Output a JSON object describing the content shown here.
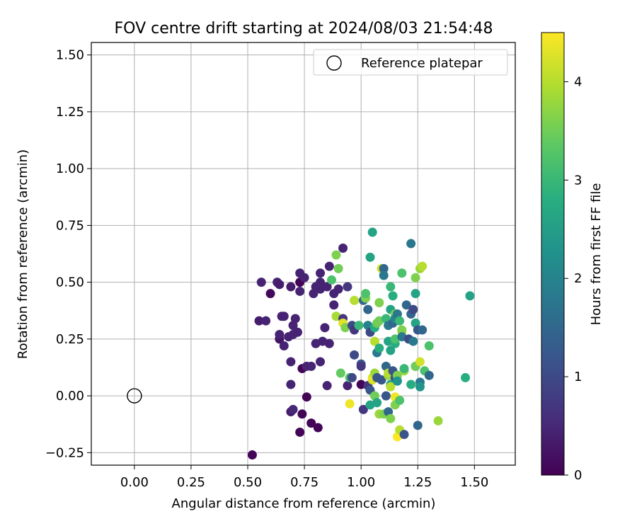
{
  "chart_data": {
    "type": "scatter",
    "title": "FOV centre drift starting at 2024/08/03 21:54:48",
    "xlabel": "Angular distance from reference (arcmin)",
    "ylabel": "Rotation from reference (arcmin)",
    "xlim": [
      -0.19,
      1.68
    ],
    "ylim": [
      -0.305,
      1.555
    ],
    "xticks": [
      0.0,
      0.25,
      0.5,
      0.75,
      1.0,
      1.25,
      1.5
    ],
    "xtick_labels": [
      "0.00",
      "0.25",
      "0.50",
      "0.75",
      "1.00",
      "1.25",
      "1.50"
    ],
    "yticks": [
      -0.25,
      0.0,
      0.25,
      0.5,
      0.75,
      1.0,
      1.25,
      1.5
    ],
    "ytick_labels": [
      "−0.25",
      "0.00",
      "0.25",
      "0.50",
      "0.75",
      "1.00",
      "1.25",
      "1.50"
    ],
    "grid": true,
    "legend": {
      "placement": "top-right",
      "entries": [
        "Reference platepar"
      ]
    },
    "reference_point": {
      "x": 0.0,
      "y": 0.0,
      "label": "Reference platepar"
    },
    "colorbar": {
      "label": "Hours from first FF file",
      "colormap": "viridis",
      "range": [
        0,
        4.5
      ],
      "ticks": [
        0,
        1,
        2,
        3,
        4
      ],
      "tick_labels": [
        "0",
        "1",
        "2",
        "3",
        "4"
      ]
    },
    "points": [
      {
        "x": 0.52,
        "y": -0.26,
        "t": 0.05
      },
      {
        "x": 0.56,
        "y": 0.5,
        "t": 0.45
      },
      {
        "x": 0.55,
        "y": 0.33,
        "t": 0.35
      },
      {
        "x": 0.58,
        "y": 0.33,
        "t": 0.45
      },
      {
        "x": 0.6,
        "y": 0.45,
        "t": 0.1
      },
      {
        "x": 0.63,
        "y": 0.5,
        "t": 0.45
      },
      {
        "x": 0.64,
        "y": 0.49,
        "t": 0.35
      },
      {
        "x": 0.64,
        "y": 0.25,
        "t": 0.25
      },
      {
        "x": 0.64,
        "y": 0.27,
        "t": 0.45
      },
      {
        "x": 0.65,
        "y": 0.35,
        "t": 0.45
      },
      {
        "x": 0.66,
        "y": 0.35,
        "t": 0.45
      },
      {
        "x": 0.66,
        "y": 0.22,
        "t": 0.45
      },
      {
        "x": 0.68,
        "y": 0.26,
        "t": 0.45
      },
      {
        "x": 0.69,
        "y": 0.48,
        "t": 0.35
      },
      {
        "x": 0.69,
        "y": 0.15,
        "t": 0.45
      },
      {
        "x": 0.69,
        "y": 0.05,
        "t": 0.45
      },
      {
        "x": 0.7,
        "y": 0.31,
        "t": 0.45
      },
      {
        "x": 0.7,
        "y": 0.27,
        "t": 0.45
      },
      {
        "x": 0.69,
        "y": -0.07,
        "t": 0.35
      },
      {
        "x": 0.7,
        "y": -0.06,
        "t": 0.5
      },
      {
        "x": 0.71,
        "y": 0.34,
        "t": 0.45
      },
      {
        "x": 0.72,
        "y": 0.28,
        "t": 0.45
      },
      {
        "x": 0.73,
        "y": 0.54,
        "t": 0.45
      },
      {
        "x": 0.73,
        "y": 0.5,
        "t": 0.05
      },
      {
        "x": 0.73,
        "y": 0.46,
        "t": 0.45
      },
      {
        "x": 0.73,
        "y": -0.16,
        "t": 0.05
      },
      {
        "x": 0.74,
        "y": 0.12,
        "t": 0.05
      },
      {
        "x": 0.74,
        "y": -0.08,
        "t": 0.05
      },
      {
        "x": 0.75,
        "y": 0.52,
        "t": 0.45
      },
      {
        "x": 0.76,
        "y": 0.13,
        "t": 0.45
      },
      {
        "x": 0.76,
        "y": -0.005,
        "t": 0.05
      },
      {
        "x": 0.78,
        "y": 0.13,
        "t": 0.45
      },
      {
        "x": 0.78,
        "y": -0.12,
        "t": 0.05
      },
      {
        "x": 0.79,
        "y": 0.45,
        "t": 0.45
      },
      {
        "x": 0.8,
        "y": 0.48,
        "t": 0.45
      },
      {
        "x": 0.8,
        "y": 0.23,
        "t": 0.45
      },
      {
        "x": 0.81,
        "y": -0.14,
        "t": 0.05
      },
      {
        "x": 0.82,
        "y": 0.54,
        "t": 0.45
      },
      {
        "x": 0.82,
        "y": 0.5,
        "t": 0.45
      },
      {
        "x": 0.82,
        "y": 0.47,
        "t": 0.45
      },
      {
        "x": 0.83,
        "y": 0.24,
        "t": 0.45
      },
      {
        "x": 0.82,
        "y": 0.15,
        "t": 0.45
      },
      {
        "x": 0.84,
        "y": 0.3,
        "t": 0.45
      },
      {
        "x": 0.85,
        "y": 0.48,
        "t": 0.45
      },
      {
        "x": 0.86,
        "y": 0.57,
        "t": 0.45
      },
      {
        "x": 0.85,
        "y": 0.045,
        "t": 0.45
      },
      {
        "x": 0.86,
        "y": 0.23,
        "t": 0.45
      },
      {
        "x": 0.87,
        "y": 0.51,
        "t": 3.2
      },
      {
        "x": 0.88,
        "y": 0.45,
        "t": 0.45
      },
      {
        "x": 0.88,
        "y": 0.4,
        "t": 0.45
      },
      {
        "x": 0.89,
        "y": 0.35,
        "t": 3.9
      },
      {
        "x": 0.89,
        "y": 0.62,
        "t": 3.6
      },
      {
        "x": 0.9,
        "y": 0.56,
        "t": 3.5
      },
      {
        "x": 0.9,
        "y": 0.47,
        "t": 0.45
      },
      {
        "x": 0.91,
        "y": 0.1,
        "t": 3.4
      },
      {
        "x": 0.92,
        "y": 0.65,
        "t": 0.45
      },
      {
        "x": 0.92,
        "y": 0.34,
        "t": 0.7
      },
      {
        "x": 0.92,
        "y": 0.32,
        "t": 4.3
      },
      {
        "x": 0.93,
        "y": 0.3,
        "t": 3.6
      },
      {
        "x": 0.94,
        "y": 0.48,
        "t": 0.7
      },
      {
        "x": 0.94,
        "y": 0.045,
        "t": 0.45
      },
      {
        "x": 0.95,
        "y": -0.035,
        "t": 4.4
      },
      {
        "x": 0.95,
        "y": 0.08,
        "t": 3.2
      },
      {
        "x": 0.96,
        "y": 0.08,
        "t": 1.0
      },
      {
        "x": 0.96,
        "y": 0.31,
        "t": 1.0
      },
      {
        "x": 0.97,
        "y": 0.42,
        "t": 4.0
      },
      {
        "x": 0.97,
        "y": 0.29,
        "t": 0.7
      },
      {
        "x": 0.97,
        "y": 0.18,
        "t": 1.0
      },
      {
        "x": 0.99,
        "y": 0.31,
        "t": 3.0
      },
      {
        "x": 1.0,
        "y": 0.14,
        "t": 1.2
      },
      {
        "x": 1.0,
        "y": 0.13,
        "t": 0.7
      },
      {
        "x": 1.0,
        "y": 0.05,
        "t": 0.05
      },
      {
        "x": 1.01,
        "y": 0.42,
        "t": 1.5
      },
      {
        "x": 1.01,
        "y": -0.06,
        "t": 0.7
      },
      {
        "x": 1.02,
        "y": 0.43,
        "t": 3.6
      },
      {
        "x": 1.02,
        "y": 0.45,
        "t": 3.2
      },
      {
        "x": 1.03,
        "y": 0.31,
        "t": 2.0
      },
      {
        "x": 1.03,
        "y": 0.38,
        "t": 1.5
      },
      {
        "x": 1.03,
        "y": 0.045,
        "t": 0.7
      },
      {
        "x": 1.04,
        "y": 0.61,
        "t": 2.6
      },
      {
        "x": 1.04,
        "y": 0.28,
        "t": 1.0
      },
      {
        "x": 1.04,
        "y": 0.025,
        "t": 1.2
      },
      {
        "x": 1.04,
        "y": -0.04,
        "t": 2.6
      },
      {
        "x": 1.05,
        "y": 0.72,
        "t": 2.6
      },
      {
        "x": 1.05,
        "y": 0.07,
        "t": 4.2
      },
      {
        "x": 1.05,
        "y": 0.08,
        "t": 4.3
      },
      {
        "x": 1.06,
        "y": 0.3,
        "t": 2.8
      },
      {
        "x": 1.06,
        "y": 0.24,
        "t": 4.0
      },
      {
        "x": 1.06,
        "y": 0.1,
        "t": 3.8
      },
      {
        "x": 1.06,
        "y": 0.0,
        "t": 3.5
      },
      {
        "x": 1.07,
        "y": 0.32,
        "t": 3.5
      },
      {
        "x": 1.07,
        "y": 0.19,
        "t": 1.8
      },
      {
        "x": 1.07,
        "y": 0.08,
        "t": 1.2
      },
      {
        "x": 1.07,
        "y": -0.03,
        "t": 2.6
      },
      {
        "x": 1.08,
        "y": 0.41,
        "t": 3.6
      },
      {
        "x": 1.08,
        "y": 0.33,
        "t": 3.5
      },
      {
        "x": 1.08,
        "y": 0.21,
        "t": 2.8
      },
      {
        "x": 1.08,
        "y": -0.08,
        "t": 3.8
      },
      {
        "x": 1.09,
        "y": 0.56,
        "t": 4.2
      },
      {
        "x": 1.09,
        "y": 0.07,
        "t": 1.2
      },
      {
        "x": 1.1,
        "y": 0.56,
        "t": 1.5
      },
      {
        "x": 1.1,
        "y": 0.53,
        "t": 1.8
      },
      {
        "x": 1.1,
        "y": -0.08,
        "t": 3.6
      },
      {
        "x": 1.11,
        "y": 0.34,
        "t": 3.0
      },
      {
        "x": 1.11,
        "y": 0.13,
        "t": 1.5
      },
      {
        "x": 1.11,
        "y": 0.0,
        "t": 1.2
      },
      {
        "x": 1.12,
        "y": 0.31,
        "t": 1.8
      },
      {
        "x": 1.12,
        "y": 0.24,
        "t": 2.6
      },
      {
        "x": 1.12,
        "y": 0.09,
        "t": 3.8
      },
      {
        "x": 1.12,
        "y": 0.1,
        "t": 4.0
      },
      {
        "x": 1.12,
        "y": -0.07,
        "t": 1.5
      },
      {
        "x": 1.13,
        "y": 0.48,
        "t": 3.0
      },
      {
        "x": 1.13,
        "y": 0.38,
        "t": 2.6
      },
      {
        "x": 1.13,
        "y": 0.2,
        "t": 2.6
      },
      {
        "x": 1.13,
        "y": 0.05,
        "t": 2.6
      },
      {
        "x": 1.13,
        "y": 0.04,
        "t": 4.0
      },
      {
        "x": 1.13,
        "y": -0.1,
        "t": 3.6
      },
      {
        "x": 1.14,
        "y": 0.44,
        "t": 2.8
      },
      {
        "x": 1.14,
        "y": 0.32,
        "t": 1.5
      },
      {
        "x": 1.14,
        "y": 0.11,
        "t": 1.2
      },
      {
        "x": 1.15,
        "y": 0.36,
        "t": 3.6
      },
      {
        "x": 1.15,
        "y": 0.34,
        "t": 2.0
      },
      {
        "x": 1.15,
        "y": 0.23,
        "t": 2.8
      },
      {
        "x": 1.15,
        "y": 0.25,
        "t": 3.2
      },
      {
        "x": 1.15,
        "y": 0.08,
        "t": 1.2
      },
      {
        "x": 1.15,
        "y": -0.005,
        "t": 4.4
      },
      {
        "x": 1.15,
        "y": -0.04,
        "t": 3.6
      },
      {
        "x": 1.16,
        "y": 0.36,
        "t": 1.8
      },
      {
        "x": 1.16,
        "y": 0.09,
        "t": 3.6
      },
      {
        "x": 1.16,
        "y": 0.065,
        "t": 2.3
      },
      {
        "x": 1.16,
        "y": -0.18,
        "t": 4.5
      },
      {
        "x": 1.17,
        "y": 0.33,
        "t": 3.0
      },
      {
        "x": 1.17,
        "y": -0.15,
        "t": 4.0
      },
      {
        "x": 1.17,
        "y": -0.02,
        "t": 3.2
      },
      {
        "x": 1.18,
        "y": 0.54,
        "t": 3.2
      },
      {
        "x": 1.18,
        "y": 0.28,
        "t": 4.3
      },
      {
        "x": 1.18,
        "y": 0.29,
        "t": 3.6
      },
      {
        "x": 1.18,
        "y": 0.26,
        "t": 1.8
      },
      {
        "x": 1.19,
        "y": 0.11,
        "t": 3.8
      },
      {
        "x": 1.19,
        "y": 0.12,
        "t": 3.0
      },
      {
        "x": 1.19,
        "y": -0.17,
        "t": 1.2
      },
      {
        "x": 1.2,
        "y": 0.4,
        "t": 1.5
      },
      {
        "x": 1.21,
        "y": 0.25,
        "t": 1.0
      },
      {
        "x": 1.22,
        "y": 0.67,
        "t": 1.8
      },
      {
        "x": 1.22,
        "y": 0.36,
        "t": 1.5
      },
      {
        "x": 1.22,
        "y": 0.05,
        "t": 2.8
      },
      {
        "x": 1.23,
        "y": 0.38,
        "t": 1.0
      },
      {
        "x": 1.23,
        "y": 0.24,
        "t": 1.8
      },
      {
        "x": 1.24,
        "y": 0.52,
        "t": 3.6
      },
      {
        "x": 1.24,
        "y": 0.32,
        "t": 2.6
      },
      {
        "x": 1.24,
        "y": 0.13,
        "t": 1.8
      },
      {
        "x": 1.24,
        "y": 0.13,
        "t": 3.5
      },
      {
        "x": 1.24,
        "y": 0.45,
        "t": 2.6
      },
      {
        "x": 1.25,
        "y": -0.13,
        "t": 1.5
      },
      {
        "x": 1.25,
        "y": 0.29,
        "t": 1.2
      },
      {
        "x": 1.26,
        "y": 0.15,
        "t": 4.2
      },
      {
        "x": 1.26,
        "y": 0.06,
        "t": 1.8
      },
      {
        "x": 1.26,
        "y": 0.04,
        "t": 2.3
      },
      {
        "x": 1.26,
        "y": 0.56,
        "t": 3.8
      },
      {
        "x": 1.27,
        "y": 0.29,
        "t": 1.5
      },
      {
        "x": 1.27,
        "y": 0.57,
        "t": 4.0
      },
      {
        "x": 1.28,
        "y": 0.11,
        "t": 3.2
      },
      {
        "x": 1.3,
        "y": 0.09,
        "t": 1.5
      },
      {
        "x": 1.3,
        "y": 0.22,
        "t": 3.2
      },
      {
        "x": 1.34,
        "y": -0.11,
        "t": 3.8
      },
      {
        "x": 1.46,
        "y": 0.08,
        "t": 2.8
      },
      {
        "x": 1.48,
        "y": 0.44,
        "t": 2.6
      }
    ]
  }
}
